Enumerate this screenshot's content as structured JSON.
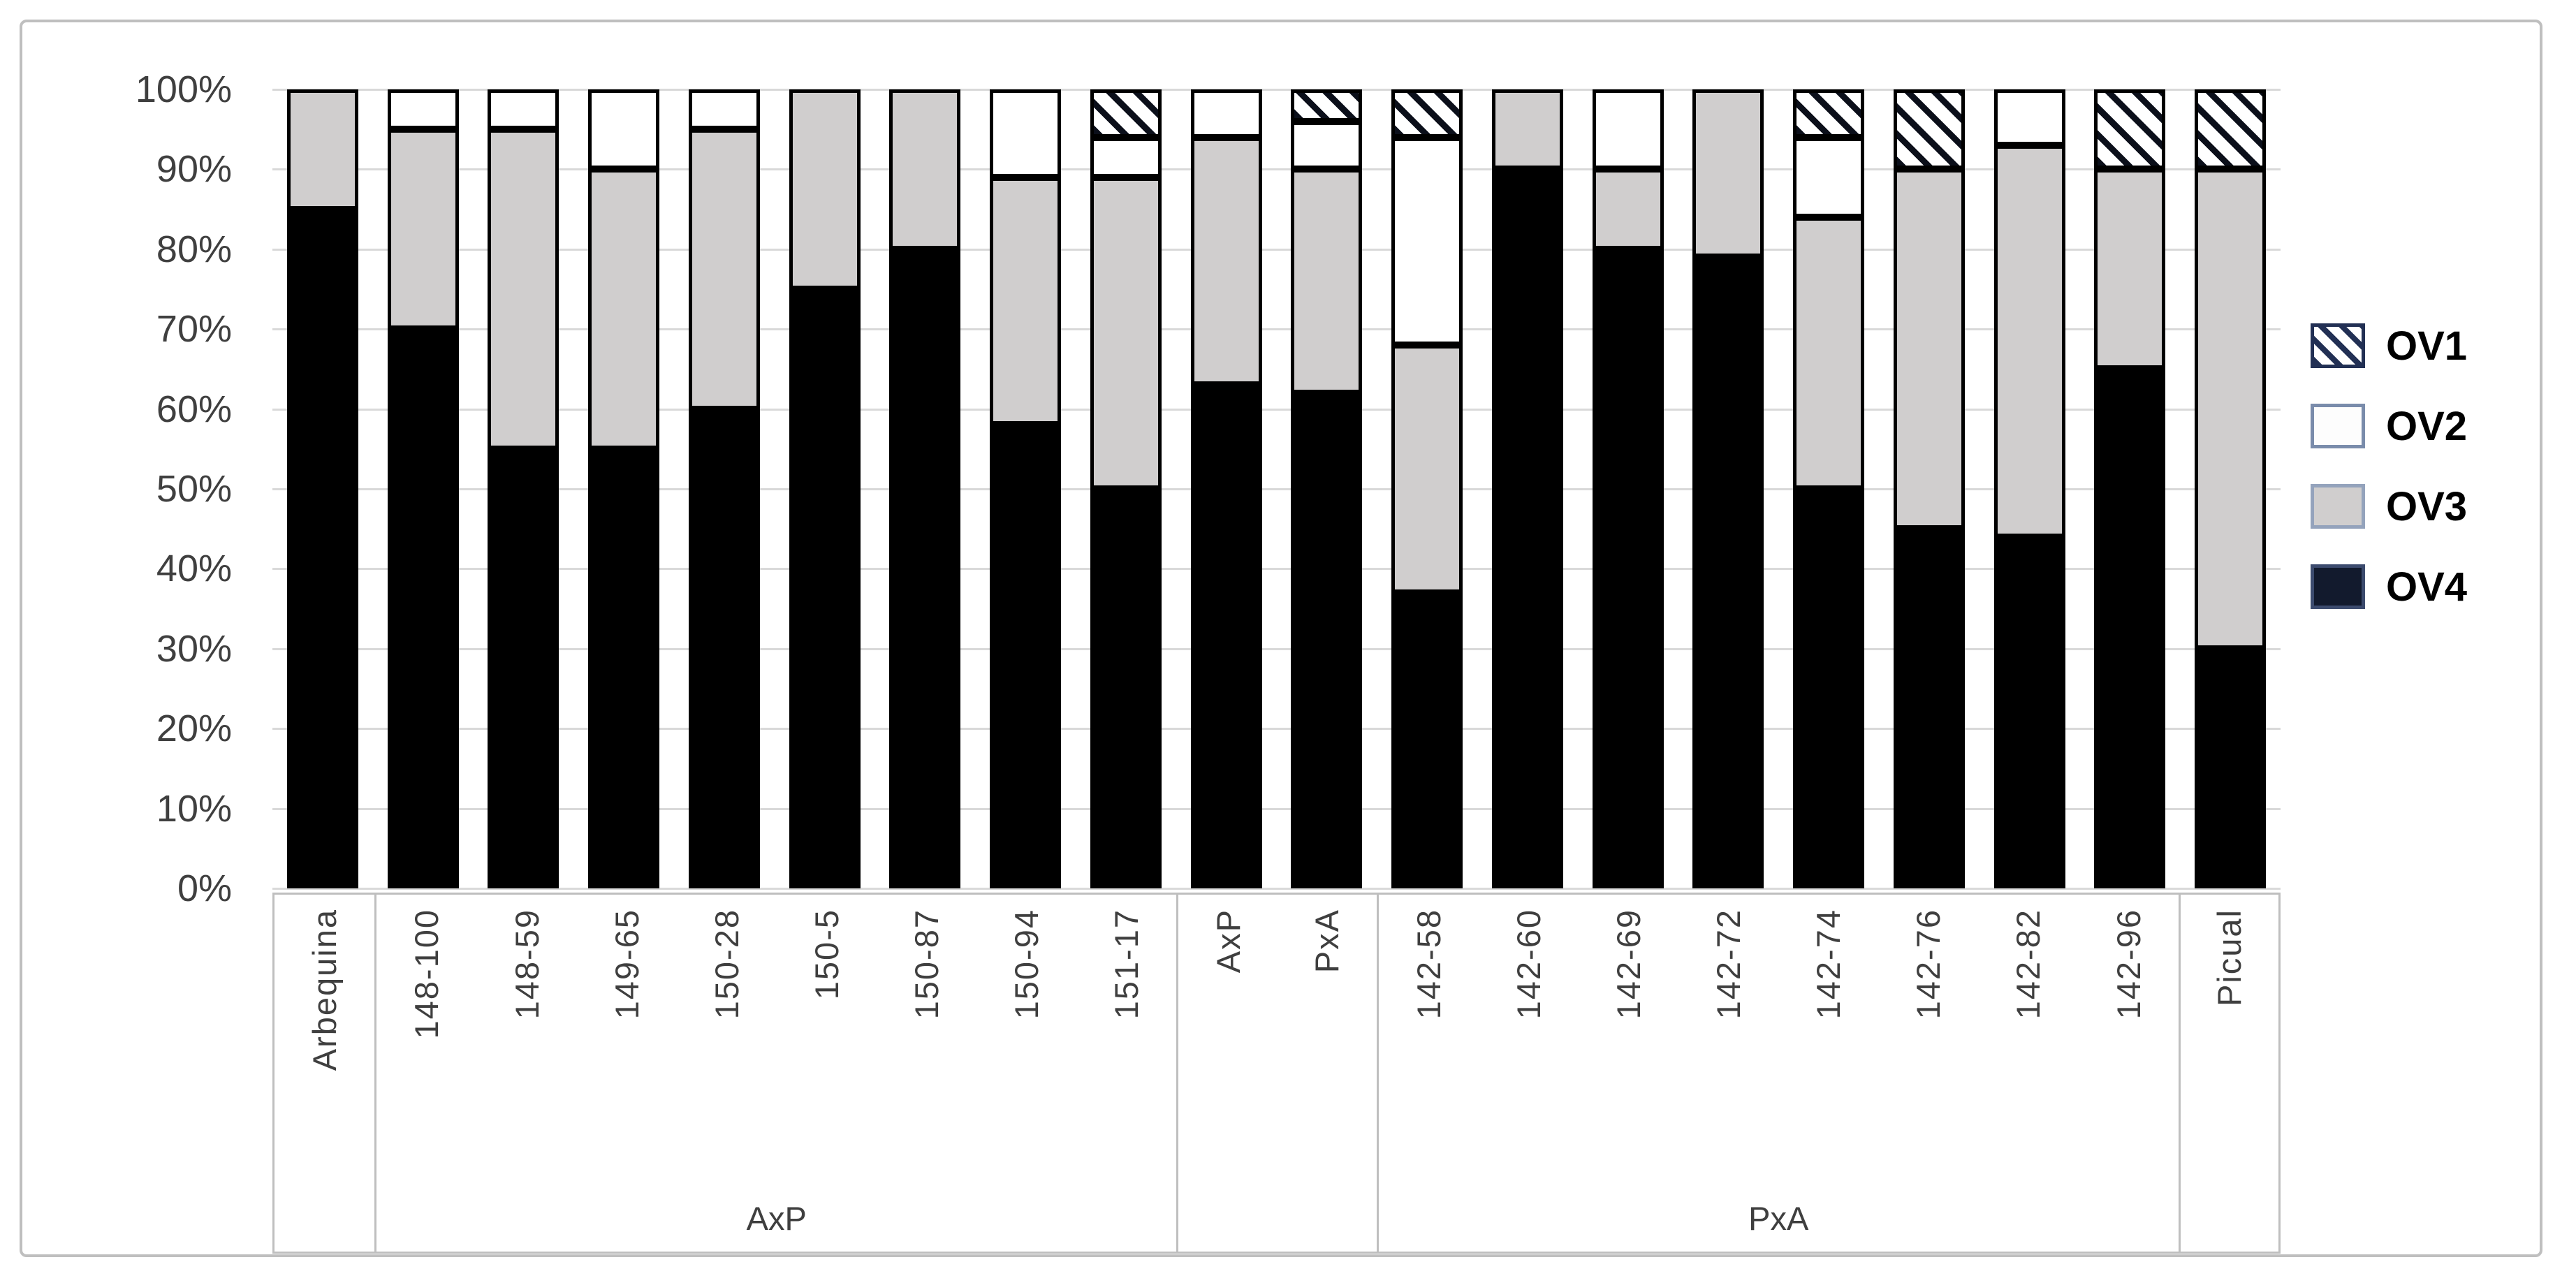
{
  "figure": {
    "description": "100% stacked column chart of OV1-OV4 proportions for olive cultivars and crosses",
    "background": "#ffffff",
    "border_color": "#bfbfbf"
  },
  "chart_data": {
    "type": "bar",
    "subtype": "percent-stacked-column",
    "title": "",
    "xlabel": "",
    "ylabel": "",
    "ylim": [
      0,
      100
    ],
    "grid": "horizontal",
    "legend_position": "right",
    "y_ticks": [
      "100%",
      "90%",
      "80%",
      "70%",
      "60%",
      "50%",
      "40%",
      "30%",
      "20%",
      "10%",
      "0%"
    ],
    "categories": [
      "Arbequina",
      "148-100",
      "148-59",
      "149-65",
      "150-28",
      "150-5",
      "150-87",
      "150-94",
      "151-17",
      "AxP",
      "PxA",
      "142-58",
      "142-60",
      "142-69",
      "142-72",
      "142-74",
      "142-76",
      "142-82",
      "142-96",
      "Picual"
    ],
    "group_labels": [
      {
        "label": "",
        "span": 1
      },
      {
        "label": "AxP",
        "span": 8
      },
      {
        "label": "",
        "span": 2
      },
      {
        "label": "PxA",
        "span": 8
      },
      {
        "label": "",
        "span": 1
      }
    ],
    "stack_order_bottom_to_top": [
      "OV4",
      "OV3",
      "OV2",
      "OV1"
    ],
    "series": [
      {
        "name": "OV1",
        "fill": "diagonal-hatch",
        "values": [
          0,
          0,
          0,
          0,
          0,
          0,
          0,
          0,
          6,
          0,
          4,
          6,
          0,
          0,
          0,
          6,
          10,
          0,
          10,
          10
        ]
      },
      {
        "name": "OV2",
        "fill": "#ffffff",
        "values": [
          0,
          5,
          5,
          10,
          5,
          0,
          0,
          11,
          5,
          6,
          6,
          26,
          0,
          10,
          0,
          10,
          0,
          7,
          0,
          0
        ]
      },
      {
        "name": "OV3",
        "fill": "#d0cece",
        "values": [
          15,
          25,
          40,
          35,
          35,
          25,
          20,
          31,
          39,
          31,
          28,
          31,
          10,
          10,
          21,
          34,
          45,
          49,
          25,
          60
        ]
      },
      {
        "name": "OV4",
        "fill": "#000000",
        "values": [
          85,
          70,
          55,
          55,
          60,
          75,
          80,
          58,
          50,
          63,
          62,
          37,
          90,
          80,
          79,
          50,
          45,
          44,
          65,
          30
        ]
      }
    ]
  },
  "colors": {
    "gridline": "#d9d9d9",
    "axis_text": "#3f3f3f",
    "bar_border": "#000000",
    "ov3_gray": "#d0cece",
    "label_box_border": "#bfbfbf",
    "legend_text": "#000000"
  }
}
